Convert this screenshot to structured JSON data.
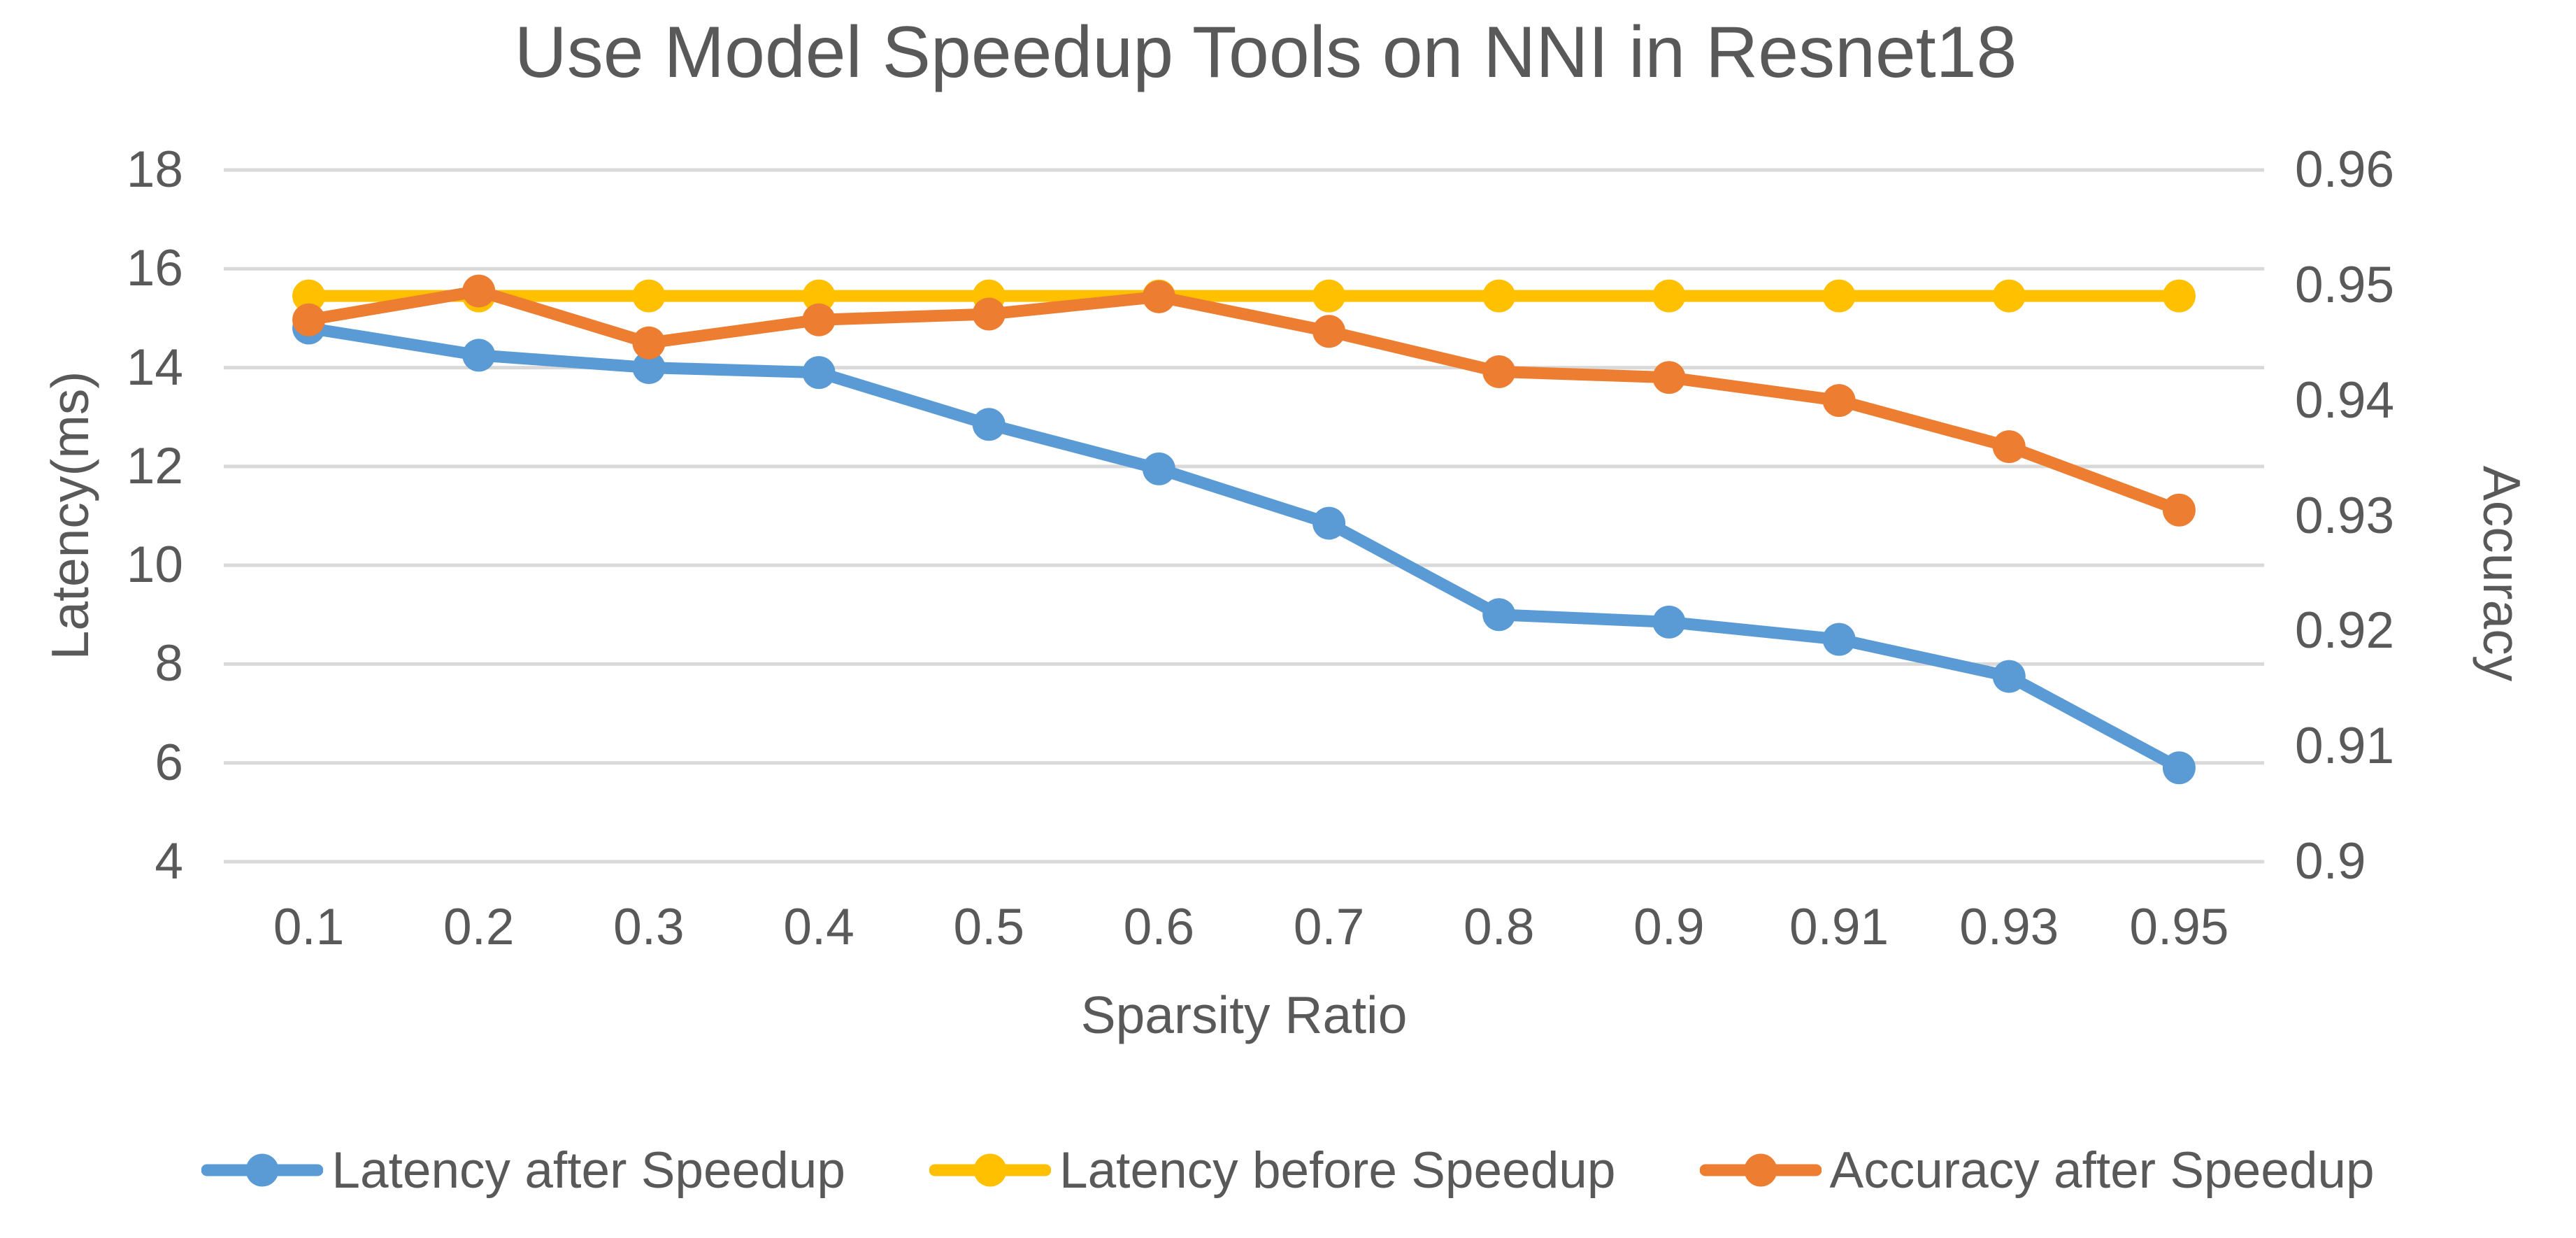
{
  "title": "Use Model Speedup Tools on NNI in Resnet18",
  "colors": {
    "blue": "#5B9BD5",
    "yellow": "#FFC000",
    "orange": "#ED7D31",
    "grid": "#D9D9D9",
    "text": "#595959"
  },
  "chart_data": {
    "type": "line",
    "title": "Use Model Speedup Tools on NNI in Resnet18",
    "categories": [
      "0.1",
      "0.2",
      "0.3",
      "0.4",
      "0.5",
      "0.6",
      "0.7",
      "0.8",
      "0.9",
      "0.91",
      "0.93",
      "0.95"
    ],
    "series": [
      {
        "name": "Latency after Speedup",
        "axis": "left",
        "color_key": "blue",
        "values": [
          14.8,
          14.25,
          14.0,
          13.9,
          12.85,
          11.95,
          10.85,
          9.0,
          8.85,
          8.5,
          7.75,
          5.9
        ]
      },
      {
        "name": "Latency before Speedup",
        "axis": "left",
        "color_key": "yellow",
        "values": [
          15.45,
          15.45,
          15.45,
          15.45,
          15.45,
          15.45,
          15.45,
          15.45,
          15.45,
          15.45,
          15.45,
          15.45
        ]
      },
      {
        "name": "Accuracy after Speedup",
        "axis": "right",
        "color_key": "orange",
        "values": [
          0.947,
          0.9495,
          0.945,
          0.947,
          0.9475,
          0.949,
          0.946,
          0.9425,
          0.942,
          0.94,
          0.936,
          0.9305
        ]
      }
    ],
    "left_axis": {
      "label": "Latency(ms)",
      "min": 4,
      "max": 18,
      "ticks": [
        "18",
        "16",
        "14",
        "12",
        "10",
        "8",
        "6",
        "4"
      ]
    },
    "right_axis": {
      "label": "Accuracy",
      "min": 0.9,
      "max": 0.96,
      "ticks": [
        "0.96",
        "0.95",
        "0.94",
        "0.93",
        "0.92",
        "0.91",
        "0.9"
      ]
    },
    "x_axis": {
      "label": "Sparsity Ratio"
    },
    "legend_position": "bottom",
    "grid": true
  }
}
